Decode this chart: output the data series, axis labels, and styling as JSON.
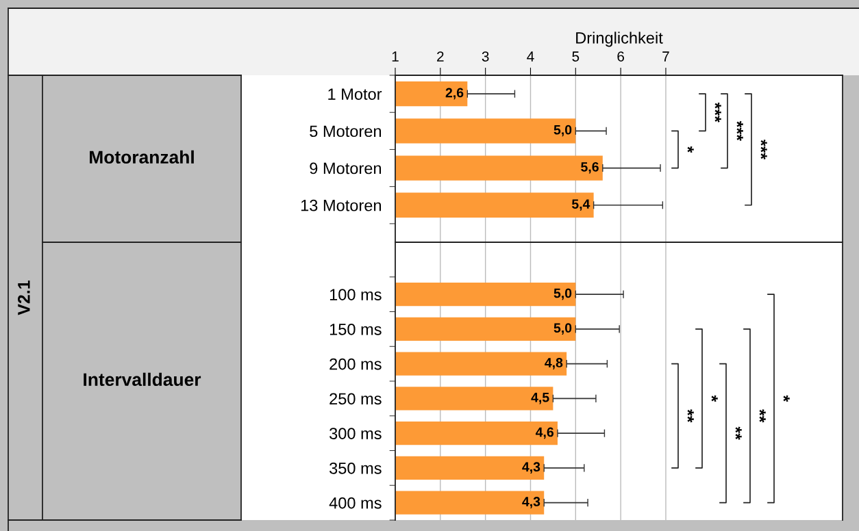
{
  "chart_data": [
    {
      "type": "bar",
      "orientation": "horizontal",
      "ylabel": "Motoranzahl",
      "xlabel": "Dringlichkeit",
      "categories": [
        "1 Motor",
        "5 Motoren",
        "9 Motoren",
        "13 Motoren"
      ],
      "values": [
        2.6,
        5.0,
        5.6,
        5.4
      ],
      "errors": [
        [
          2.6,
          3.65
        ],
        [
          5.0,
          5.68
        ],
        [
          5.6,
          6.88
        ],
        [
          5.4,
          6.93
        ]
      ],
      "value_labels": [
        "2,6",
        "5,0",
        "5,6",
        "5,4"
      ],
      "color": "#fd9a36",
      "xlim": [
        1,
        10.92
      ],
      "xticks": [
        1,
        2,
        3,
        4,
        5,
        6,
        7
      ],
      "grid": "x",
      "legend": false,
      "annotations": [
        "V2.1",
        "***",
        "*",
        "***",
        "***"
      ]
    },
    {
      "type": "bar",
      "orientation": "horizontal",
      "ylabel": "Intervalldauer",
      "categories": [
        "100 ms",
        "150 ms",
        "200 ms",
        "250 ms",
        "300 ms",
        "350 ms",
        "400 ms"
      ],
      "values": [
        5.0,
        5.0,
        4.8,
        4.5,
        4.6,
        4.3,
        4.3
      ],
      "errors": [
        [
          5.0,
          6.06
        ],
        [
          5.0,
          5.97
        ],
        [
          4.8,
          5.7
        ],
        [
          4.5,
          5.45
        ],
        [
          4.6,
          5.64
        ],
        [
          4.3,
          5.19
        ],
        [
          4.3,
          5.27
        ]
      ],
      "value_labels": [
        "5,0",
        "5,0",
        "4,8",
        "4,5",
        "4,6",
        "4,3",
        "4,3"
      ],
      "color": "#fd9a36",
      "xlim": [
        1,
        10.92
      ],
      "xticks": [
        1,
        2,
        3,
        4,
        5,
        6,
        7
      ],
      "grid": "x",
      "legend": false,
      "tick_labels": "y",
      "annotations": [
        "**",
        "*",
        "**",
        "**",
        "*"
      ]
    }
  ]
}
